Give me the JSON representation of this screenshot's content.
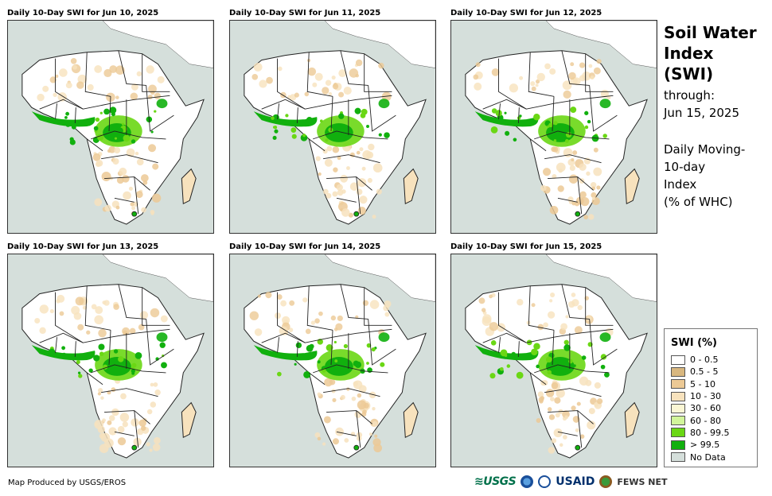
{
  "panels": [
    {
      "title": "Daily 10-Day SWI for Jun 10, 2025"
    },
    {
      "title": "Daily 10-Day SWI for Jun 11, 2025"
    },
    {
      "title": "Daily 10-Day SWI for Jun 12, 2025"
    },
    {
      "title": "Daily 10-Day SWI for Jun 13, 2025"
    },
    {
      "title": "Daily 10-Day SWI for Jun 14, 2025"
    },
    {
      "title": "Daily 10-Day SWI for Jun 15, 2025"
    }
  ],
  "side": {
    "title_line1": "Soil Water",
    "title_line2": "Index (SWI)",
    "through_label": "through:",
    "through_date": "Jun 15, 2025",
    "desc_line1": "Daily Moving-",
    "desc_line2": "10-day",
    "desc_line3": "Index",
    "desc_line4": "(% of WHC)"
  },
  "legend": {
    "title": "SWI (%)",
    "items": [
      {
        "label": "0 - 0.5",
        "color": "#ffffff"
      },
      {
        "label": "0.5 - 5",
        "color": "#d8b77f"
      },
      {
        "label": "5 - 10",
        "color": "#ecc995"
      },
      {
        "label": "10 - 30",
        "color": "#f7e2bd"
      },
      {
        "label": "30 - 60",
        "color": "#fbf6d4"
      },
      {
        "label": "60 - 80",
        "color": "#d2f59b"
      },
      {
        "label": "80 - 99.5",
        "color": "#6ad714"
      },
      {
        "label": "> 99.5",
        "color": "#11b00e"
      },
      {
        "label": "No Data",
        "color": "#d5dfdb"
      }
    ]
  },
  "footer": {
    "credit": "Map Produced by USGS/EROS",
    "logo_usgs": "≋USGS",
    "logo_usaid": "USAID",
    "logo_fews": "FEWS NET"
  },
  "colors": {
    "sea": "#d5dfdb",
    "land_dry": "#ffffff",
    "wet_high": "#11b00e",
    "wet_mid": "#6ad714",
    "tan": "#ecc995",
    "light_tan": "#f7e2bd"
  }
}
